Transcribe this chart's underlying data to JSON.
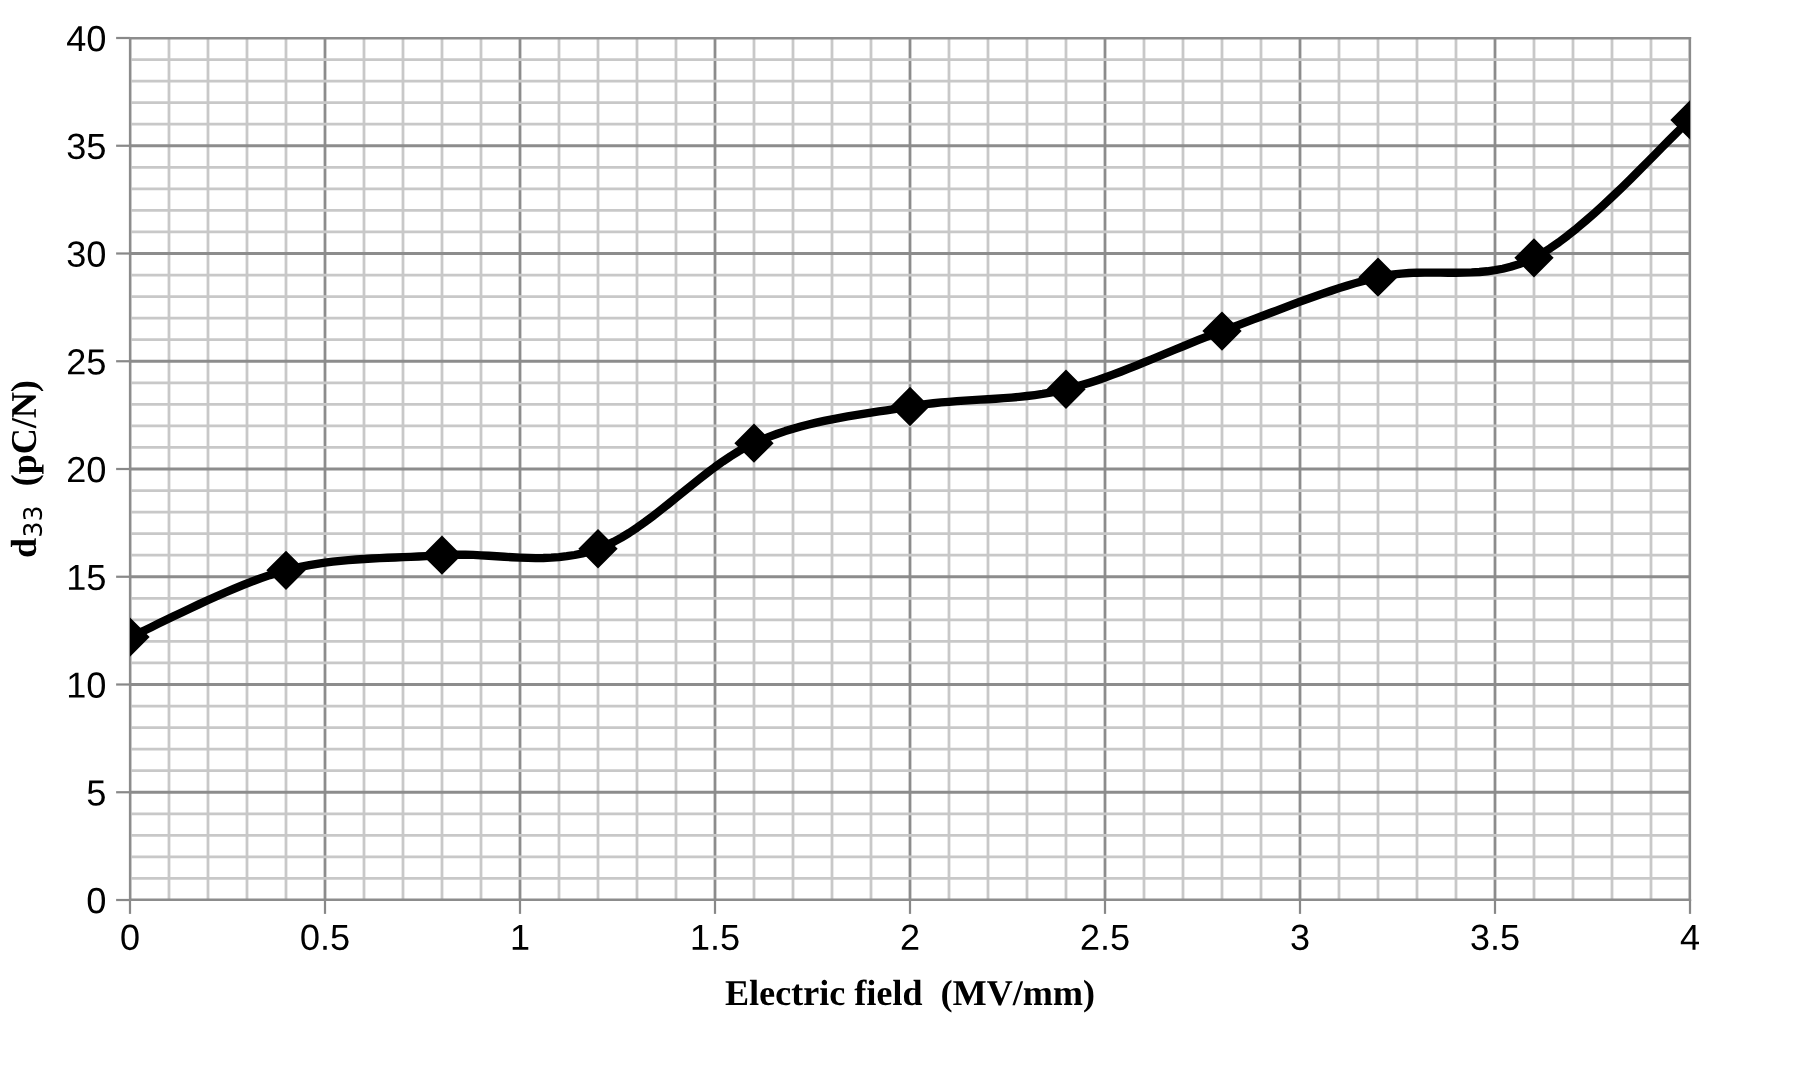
{
  "chart_data": {
    "type": "line",
    "xlabel": "Electric field  (MV/mm)",
    "ylabel": "d$_{33}$  (pC/N)",
    "x": [
      0,
      0.4,
      0.8,
      1.2,
      1.6,
      2.0,
      2.4,
      2.8,
      3.2,
      3.6,
      4.0
    ],
    "series": [
      {
        "color": "#000000",
        "values": [
          12.2,
          15.3,
          16.0,
          16.3,
          21.2,
          22.9,
          23.7,
          26.4,
          28.9,
          29.8,
          36.2
        ]
      }
    ],
    "xlim": [
      0,
      4
    ],
    "xticks": [
      0,
      {
        "value": 0.5,
        "label": "0.5"
      },
      1,
      {
        "value": 1.5,
        "label": "1.5"
      },
      2,
      {
        "value": 2.5,
        "label": "2.5"
      },
      3,
      {
        "value": 3.5,
        "label": "3.5"
      },
      4
    ],
    "ylim": [
      0,
      40
    ],
    "yticks": [
      0,
      5,
      10,
      15,
      20,
      25,
      30,
      35,
      40
    ],
    "grid": true,
    "legend": false,
    "marker": "diamond",
    "line_style": "solid"
  }
}
